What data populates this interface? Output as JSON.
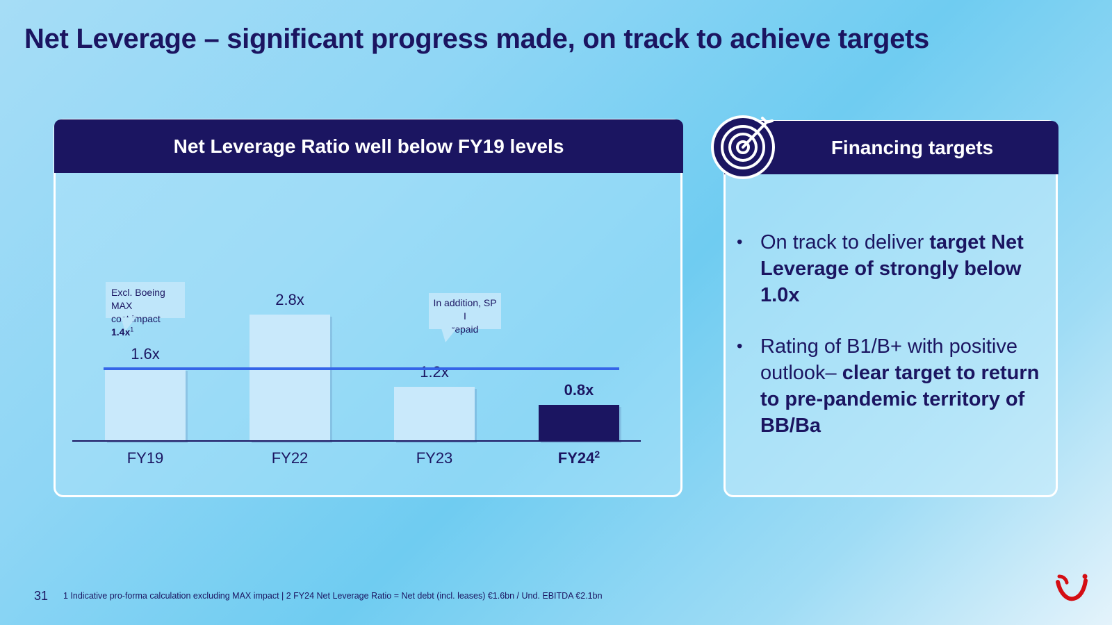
{
  "slide": {
    "title": "Net Leverage – significant progress made, on track to achieve targets",
    "page_number": "31",
    "footnote": "1 Indicative pro-forma calculation excluding MAX impact | 2 FY24 Net Leverage Ratio = Net debt (incl. leases) €1.6bn / Und. EBITDA €2.1bn"
  },
  "left_panel": {
    "header": "Net Leverage Ratio well below FY19 levels"
  },
  "chart_data": {
    "type": "bar",
    "categories": [
      "FY19",
      "FY22",
      "FY23",
      "FY24"
    ],
    "category_superscripts": [
      "",
      "",
      "",
      "2"
    ],
    "values": [
      1.6,
      2.8,
      1.2,
      0.8
    ],
    "value_labels": [
      "1.6x",
      "2.8x",
      "1.2x",
      "0.8x"
    ],
    "highlight_index": 3,
    "reference_line": 1.6,
    "ylim": [
      0,
      3.2
    ],
    "grid": false,
    "colors": {
      "bar": "#c9e9fb",
      "highlight": "#1b1561",
      "reference_line": "#3565e8",
      "baseline": "#1b1561"
    },
    "annotations": [
      {
        "text_line1": "Excl. Boeing MAX",
        "text_line2": "cost impact",
        "value": "1.4x",
        "superscript": "1"
      },
      {
        "text_line1": "In addition, SP I",
        "text_line2": "repaid"
      }
    ]
  },
  "right_panel": {
    "header": "Financing targets",
    "icon": "target-icon",
    "bullets": [
      {
        "plain": "On track to deliver ",
        "bold": "target Net Leverage of strongly below 1.0x"
      },
      {
        "plain": "Rating of B1/B+ with positive outlook– ",
        "bold": "clear target to return to pre-pandemic territory of BB/Ba"
      }
    ]
  },
  "logo": {
    "name": "tui-logo",
    "color": "#d40e14"
  }
}
